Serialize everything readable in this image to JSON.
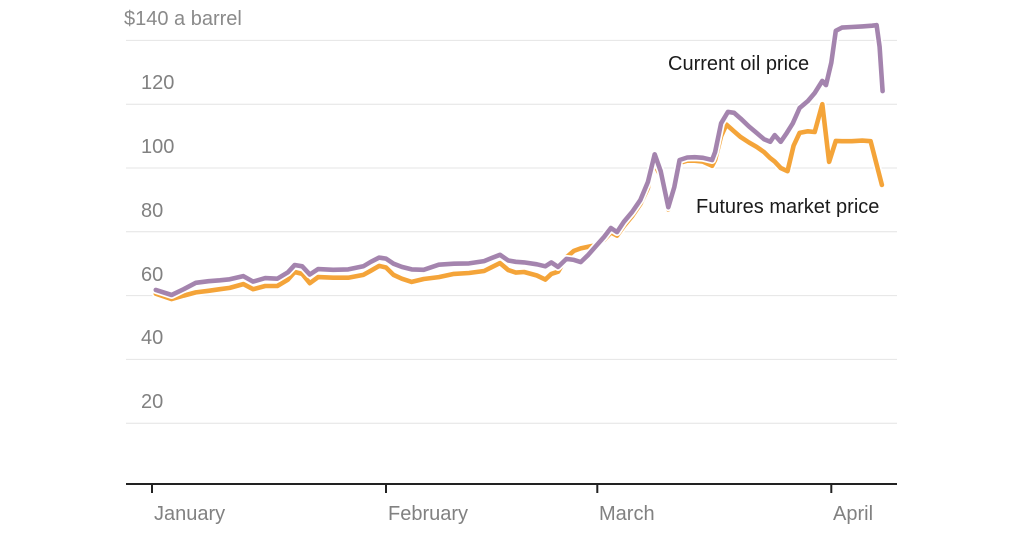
{
  "chart_data": {
    "type": "line",
    "title": "$140 a barrel",
    "x_axis": {
      "unit": "days since Jan 1",
      "ticks": [
        {
          "t": 0,
          "label": "January"
        },
        {
          "t": 31,
          "label": "February"
        },
        {
          "t": 59,
          "label": "March"
        },
        {
          "t": 90,
          "label": "April"
        }
      ]
    },
    "y_axis": {
      "unit": "US dollars per barrel",
      "grid": true,
      "range_shown": [
        0,
        150
      ],
      "ticks": [
        {
          "v": 140,
          "label": "$140 a barrel"
        },
        {
          "v": 120,
          "label": "120"
        },
        {
          "v": 100,
          "label": "100"
        },
        {
          "v": 80,
          "label": "80"
        },
        {
          "v": 60,
          "label": "60"
        },
        {
          "v": 40,
          "label": "40"
        },
        {
          "v": 20,
          "label": "20"
        }
      ]
    },
    "legend_position": "inline-annotations",
    "series": [
      {
        "name": "Current oil price",
        "color": "#a484ae",
        "points": [
          [
            0.5,
            61.8
          ],
          [
            2.6,
            60.2
          ],
          [
            4.2,
            62.0
          ],
          [
            5.8,
            64.0
          ],
          [
            7.5,
            64.5
          ],
          [
            9.0,
            64.8
          ],
          [
            10.3,
            65.1
          ],
          [
            12.1,
            66.1
          ],
          [
            13.4,
            64.4
          ],
          [
            15.0,
            65.5
          ],
          [
            16.6,
            65.3
          ],
          [
            18.0,
            67.3
          ],
          [
            18.9,
            69.6
          ],
          [
            19.9,
            69.2
          ],
          [
            20.9,
            66.6
          ],
          [
            22.0,
            68.3
          ],
          [
            24.0,
            68.1
          ],
          [
            26.0,
            68.2
          ],
          [
            28.0,
            69.2
          ],
          [
            29.0,
            70.6
          ],
          [
            30.1,
            71.9
          ],
          [
            31.0,
            71.6
          ],
          [
            32.0,
            70.0
          ],
          [
            33.1,
            69.0
          ],
          [
            34.4,
            68.2
          ],
          [
            36.0,
            68.1
          ],
          [
            38.0,
            69.7
          ],
          [
            40.0,
            70.0
          ],
          [
            42.0,
            70.1
          ],
          [
            44.0,
            70.8
          ],
          [
            45.0,
            71.8
          ],
          [
            46.1,
            72.8
          ],
          [
            47.2,
            71.0
          ],
          [
            48.2,
            70.6
          ],
          [
            49.3,
            70.4
          ],
          [
            51.0,
            69.8
          ],
          [
            52.1,
            69.2
          ],
          [
            52.9,
            70.4
          ],
          [
            53.8,
            69.0
          ],
          [
            54.9,
            71.5
          ],
          [
            55.9,
            71.2
          ],
          [
            56.8,
            70.5
          ],
          [
            57.8,
            72.8
          ],
          [
            58.8,
            75.5
          ],
          [
            59.9,
            78.4
          ],
          [
            60.8,
            81.2
          ],
          [
            61.6,
            79.9
          ],
          [
            62.5,
            83.1
          ],
          [
            63.6,
            86.2
          ],
          [
            64.7,
            90.0
          ],
          [
            65.7,
            95.6
          ],
          [
            66.6,
            104.3
          ],
          [
            67.4,
            99.0
          ],
          [
            68.4,
            87.7
          ],
          [
            69.2,
            94.0
          ],
          [
            69.9,
            102.5
          ],
          [
            70.9,
            103.3
          ],
          [
            71.9,
            103.4
          ],
          [
            73.0,
            103.2
          ],
          [
            74.2,
            102.5
          ],
          [
            74.6,
            105.0
          ],
          [
            75.4,
            114.0
          ],
          [
            76.3,
            117.6
          ],
          [
            77.1,
            117.3
          ],
          [
            78.0,
            115.5
          ],
          [
            79.1,
            113.0
          ],
          [
            80.1,
            111.0
          ],
          [
            81.1,
            109.0
          ],
          [
            81.9,
            108.2
          ],
          [
            82.5,
            110.3
          ],
          [
            83.3,
            108.2
          ],
          [
            84.1,
            111.0
          ],
          [
            84.9,
            114.0
          ],
          [
            85.8,
            118.8
          ],
          [
            86.9,
            121.0
          ],
          [
            87.8,
            123.5
          ],
          [
            88.8,
            127.3
          ],
          [
            89.3,
            126.0
          ],
          [
            90.0,
            133.0
          ],
          [
            90.6,
            143.0
          ],
          [
            91.4,
            144.0
          ],
          [
            92.7,
            144.2
          ],
          [
            94.1,
            144.4
          ],
          [
            95.4,
            144.6
          ],
          [
            96.0,
            144.8
          ],
          [
            96.4,
            138.0
          ],
          [
            96.8,
            124.1
          ]
        ]
      },
      {
        "name": "Futures market price",
        "color": "#f4a439",
        "points": [
          [
            0.5,
            60.6
          ],
          [
            2.6,
            58.9
          ],
          [
            4.2,
            60.0
          ],
          [
            5.8,
            61.0
          ],
          [
            7.5,
            61.5
          ],
          [
            9.0,
            62.0
          ],
          [
            10.3,
            62.4
          ],
          [
            12.1,
            63.6
          ],
          [
            13.4,
            62.0
          ],
          [
            15.0,
            63.0
          ],
          [
            16.6,
            63.0
          ],
          [
            18.0,
            65.0
          ],
          [
            18.9,
            67.4
          ],
          [
            19.9,
            66.8
          ],
          [
            20.9,
            63.9
          ],
          [
            22.0,
            65.8
          ],
          [
            24.0,
            65.6
          ],
          [
            26.0,
            65.6
          ],
          [
            28.0,
            66.5
          ],
          [
            29.0,
            67.8
          ],
          [
            30.1,
            69.3
          ],
          [
            31.0,
            68.8
          ],
          [
            32.0,
            66.5
          ],
          [
            33.1,
            65.3
          ],
          [
            34.4,
            64.3
          ],
          [
            36.0,
            65.2
          ],
          [
            38.0,
            65.8
          ],
          [
            40.0,
            66.8
          ],
          [
            42.0,
            67.1
          ],
          [
            44.0,
            67.7
          ],
          [
            45.0,
            68.9
          ],
          [
            46.1,
            70.2
          ],
          [
            47.2,
            68.0
          ],
          [
            48.2,
            67.2
          ],
          [
            49.3,
            67.4
          ],
          [
            51.0,
            66.3
          ],
          [
            52.1,
            65.0
          ],
          [
            52.9,
            66.8
          ],
          [
            53.8,
            67.5
          ],
          [
            54.9,
            72.0
          ],
          [
            55.9,
            74.0
          ],
          [
            56.8,
            74.8
          ],
          [
            57.8,
            75.3
          ],
          [
            58.8,
            75.8
          ],
          [
            59.9,
            77.5
          ],
          [
            60.8,
            79.8
          ],
          [
            61.6,
            78.8
          ],
          [
            62.5,
            81.8
          ],
          [
            63.6,
            84.9
          ],
          [
            64.7,
            88.7
          ],
          [
            65.7,
            93.7
          ],
          [
            66.4,
            102.0
          ],
          [
            67.4,
            97.5
          ],
          [
            68.4,
            87.0
          ],
          [
            69.2,
            93.0
          ],
          [
            69.9,
            101.6
          ],
          [
            70.9,
            102.3
          ],
          [
            71.9,
            102.3
          ],
          [
            73.0,
            102.0
          ],
          [
            74.2,
            100.7
          ],
          [
            74.6,
            102.5
          ],
          [
            75.4,
            110.0
          ],
          [
            76.1,
            113.6
          ],
          [
            77.1,
            111.5
          ],
          [
            78.0,
            109.7
          ],
          [
            79.1,
            108.0
          ],
          [
            80.1,
            106.6
          ],
          [
            81.1,
            105.0
          ],
          [
            81.9,
            103.1
          ],
          [
            82.5,
            102.0
          ],
          [
            83.3,
            100.0
          ],
          [
            84.2,
            99.0
          ],
          [
            85.0,
            107.0
          ],
          [
            85.8,
            111.0
          ],
          [
            86.9,
            111.5
          ],
          [
            87.8,
            111.3
          ],
          [
            88.8,
            120.0
          ],
          [
            89.7,
            101.9
          ],
          [
            90.6,
            108.5
          ],
          [
            91.4,
            108.4
          ],
          [
            92.7,
            108.4
          ],
          [
            94.1,
            108.6
          ],
          [
            95.2,
            108.4
          ],
          [
            96.7,
            94.7
          ]
        ]
      }
    ]
  },
  "annotations": {
    "current": {
      "label": "Current oil price"
    },
    "futures": {
      "label": "Futures market price"
    }
  },
  "colors": {
    "current_line": "#a484ae",
    "futures_line": "#f4a439",
    "grid": "#e4e4e4",
    "axis": "#222222",
    "tick_text": "#818181",
    "annotation_text": "#1b1b1b",
    "background": "#ffffff"
  }
}
